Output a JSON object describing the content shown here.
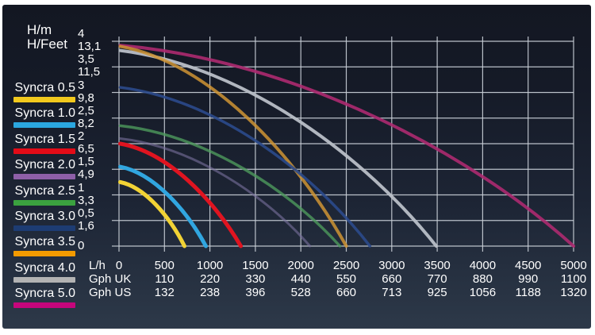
{
  "page": {
    "background": "#ffffff"
  },
  "panel": {
    "bg_top": "#131722",
    "bg_bottom": "#2d3949",
    "grid_color": "#c9cfd7",
    "text_color": "#ffffff"
  },
  "chart_data": {
    "type": "line",
    "title": "",
    "ylabel_primary": "H/m",
    "ylabel_secondary": "H/Feet",
    "xlabel_rows": {
      "lh": "L/h",
      "gph_uk": "Gph UK",
      "gph_us": "Gph US"
    },
    "xlim_lh": [
      0,
      5000
    ],
    "ylim_m": [
      0,
      4
    ],
    "grid": true,
    "legend_position": "left",
    "x_ticks": {
      "lh": [
        "0",
        "500",
        "1000",
        "1500",
        "2000",
        "2500",
        "3000",
        "3500",
        "4000",
        "4500",
        "5000"
      ],
      "gph_uk": [
        "110",
        "220",
        "330",
        "440",
        "550",
        "660",
        "770",
        "880",
        "990",
        "1100"
      ],
      "gph_us": [
        "132",
        "238",
        "396",
        "528",
        "660",
        "713",
        "925",
        "1056",
        "1188",
        "1320"
      ]
    },
    "y_ticks": [
      {
        "m": "4",
        "feet": "13,1"
      },
      {
        "m": "3,5",
        "feet": "11,5"
      },
      {
        "m": "3",
        "feet": "9,8"
      },
      {
        "m": "2,5",
        "feet": "8,2"
      },
      {
        "m": "2",
        "feet": "6,5"
      },
      {
        "m": "1,5",
        "feet": "4,9"
      },
      {
        "m": "1",
        "feet": "3,3"
      },
      {
        "m": "0,5",
        "feet": "1,6"
      },
      {
        "m": "0",
        "feet": ""
      }
    ],
    "series": [
      {
        "name": "Syncra 0.5",
        "color": "#f2c91d",
        "curve_color": "#f2d335",
        "shutoff_head_m": 1.25,
        "max_flow_lh": 720
      },
      {
        "name": "Syncra 1.0",
        "color": "#2ba7e0",
        "curve_color": "#31a6e0",
        "shutoff_head_m": 1.55,
        "max_flow_lh": 955
      },
      {
        "name": "Syncra 1.5",
        "color": "#e30b17",
        "curve_color": "#e01420",
        "shutoff_head_m": 2.0,
        "max_flow_lh": 1340
      },
      {
        "name": "Syncra 2.0",
        "color": "#8e5fa8",
        "curve_color": "#79729f",
        "shutoff_head_m": 2.1,
        "max_flow_lh": 2100
      },
      {
        "name": "Syncra 2.5",
        "color": "#3ba23f",
        "curve_color": "#4d9a5c",
        "shutoff_head_m": 2.35,
        "max_flow_lh": 2430
      },
      {
        "name": "Syncra 3.0",
        "color": "#1d3c73",
        "curve_color": "#2b4a8c",
        "shutoff_head_m": 3.1,
        "max_flow_lh": 2760
      },
      {
        "name": "Syncra 3.5",
        "color": "#f49b00",
        "curve_color": "#cf9434",
        "shutoff_head_m": 3.9,
        "max_flow_lh": 2500
      },
      {
        "name": "Syncra 4.0",
        "color": "#b3b3b3",
        "curve_color": "#b9bfc7",
        "shutoff_head_m": 3.82,
        "max_flow_lh": 3490
      },
      {
        "name": "Syncra 5.0",
        "color": "#c6067c",
        "curve_color": "#ad2a70",
        "shutoff_head_m": 3.92,
        "max_flow_lh": 5000
      }
    ]
  }
}
